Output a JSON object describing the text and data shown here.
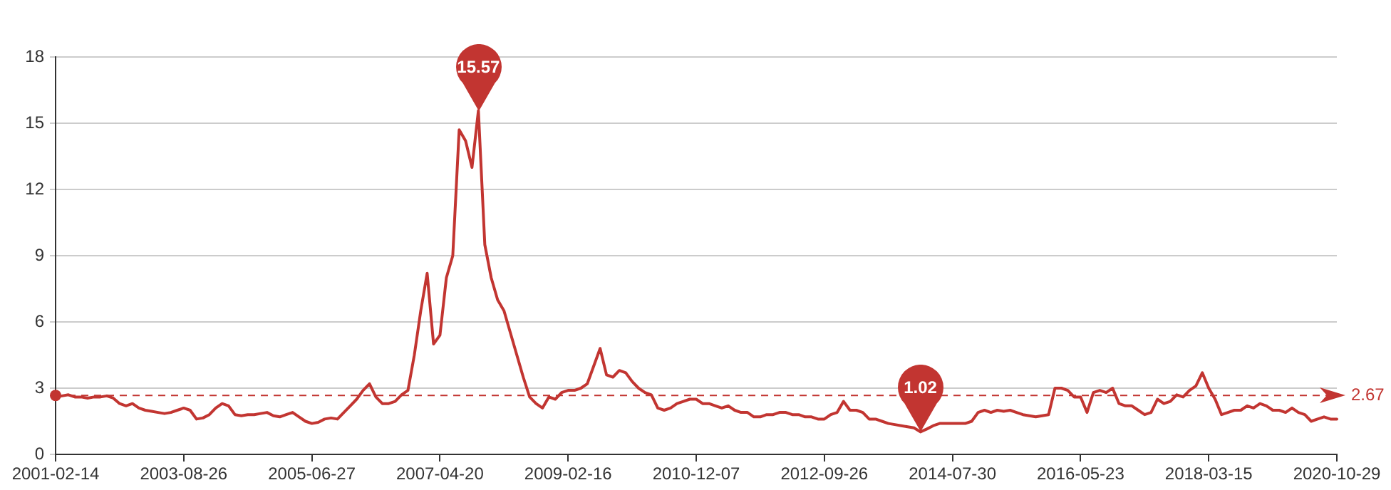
{
  "chart_data": {
    "type": "line",
    "categories": [
      "2001-02-14",
      null,
      null,
      null,
      null,
      null,
      null,
      null,
      null,
      null,
      null,
      null,
      null,
      null,
      null,
      null,
      null,
      null,
      null,
      null,
      "2003-08-26",
      null,
      null,
      null,
      null,
      null,
      null,
      null,
      null,
      null,
      null,
      null,
      null,
      null,
      null,
      null,
      null,
      null,
      null,
      null,
      "2005-06-27",
      null,
      null,
      null,
      null,
      null,
      null,
      null,
      null,
      null,
      null,
      null,
      null,
      null,
      null,
      null,
      null,
      null,
      null,
      null,
      "2007-04-20",
      null,
      null,
      null,
      null,
      null,
      null,
      null,
      null,
      null,
      null,
      null,
      null,
      null,
      null,
      null,
      null,
      null,
      null,
      null,
      "2009-02-16",
      null,
      null,
      null,
      null,
      null,
      null,
      null,
      null,
      null,
      null,
      null,
      null,
      null,
      null,
      null,
      null,
      null,
      null,
      null,
      "2010-12-07",
      null,
      null,
      null,
      null,
      null,
      null,
      null,
      null,
      null,
      null,
      null,
      null,
      null,
      null,
      null,
      null,
      null,
      null,
      null,
      "2012-09-26",
      null,
      null,
      null,
      null,
      null,
      null,
      null,
      null,
      null,
      null,
      null,
      null,
      null,
      null,
      null,
      null,
      null,
      null,
      null,
      "2014-07-30",
      null,
      null,
      null,
      null,
      null,
      null,
      null,
      null,
      null,
      null,
      null,
      null,
      null,
      null,
      null,
      null,
      null,
      null,
      null,
      "2016-05-23",
      null,
      null,
      null,
      null,
      null,
      null,
      null,
      null,
      null,
      null,
      null,
      null,
      null,
      null,
      null,
      null,
      null,
      null,
      null,
      "2018-03-15",
      null,
      null,
      null,
      null,
      null,
      null,
      null,
      null,
      null,
      null,
      null,
      null,
      null,
      null,
      null,
      null,
      null,
      null,
      null,
      "2020-10-29"
    ],
    "series": [
      {
        "color": "#c23531",
        "values": [
          2.6,
          2.65,
          2.7,
          2.6,
          2.6,
          2.55,
          2.6,
          2.6,
          2.65,
          2.55,
          2.3,
          2.2,
          2.3,
          2.1,
          2.0,
          1.95,
          1.9,
          1.85,
          1.9,
          2.0,
          2.1,
          2.0,
          1.6,
          1.65,
          1.8,
          2.1,
          2.3,
          2.2,
          1.8,
          1.75,
          1.8,
          1.8,
          1.85,
          1.9,
          1.75,
          1.7,
          1.8,
          1.9,
          1.7,
          1.5,
          1.4,
          1.45,
          1.6,
          1.65,
          1.6,
          1.9,
          2.2,
          2.5,
          2.9,
          3.2,
          2.6,
          2.3,
          2.3,
          2.4,
          2.7,
          2.9,
          4.5,
          6.5,
          8.2,
          5.0,
          5.4,
          8.0,
          9.0,
          14.7,
          14.2,
          13.0,
          15.57,
          9.5,
          8.0,
          7.0,
          6.5,
          5.5,
          4.5,
          3.5,
          2.6,
          2.3,
          2.1,
          2.6,
          2.5,
          2.8,
          2.9,
          2.9,
          3.0,
          3.2,
          4.0,
          4.8,
          3.6,
          3.5,
          3.8,
          3.7,
          3.3,
          3.0,
          2.8,
          2.7,
          2.1,
          2.0,
          2.1,
          2.3,
          2.4,
          2.5,
          2.5,
          2.3,
          2.3,
          2.2,
          2.1,
          2.2,
          2.0,
          1.9,
          1.9,
          1.7,
          1.7,
          1.8,
          1.8,
          1.9,
          1.9,
          1.8,
          1.8,
          1.7,
          1.7,
          1.6,
          1.6,
          1.8,
          1.9,
          2.4,
          2.0,
          2.0,
          1.9,
          1.6,
          1.6,
          1.5,
          1.4,
          1.35,
          1.3,
          1.25,
          1.2,
          1.02,
          1.15,
          1.3,
          1.4,
          1.4,
          1.4,
          1.4,
          1.4,
          1.5,
          1.9,
          2.0,
          1.9,
          2.0,
          1.95,
          2.0,
          1.9,
          1.8,
          1.75,
          1.7,
          1.75,
          1.8,
          3.0,
          3.0,
          2.9,
          2.6,
          2.6,
          1.9,
          2.8,
          2.9,
          2.8,
          3.0,
          2.3,
          2.2,
          2.2,
          2.0,
          1.8,
          1.9,
          2.5,
          2.3,
          2.4,
          2.7,
          2.6,
          2.9,
          3.1,
          3.7,
          3.0,
          2.5,
          1.8,
          1.9,
          2.0,
          2.0,
          2.2,
          2.1,
          2.3,
          2.2,
          2.0,
          2.0,
          1.9,
          2.1,
          1.9,
          1.8,
          1.5,
          1.6,
          1.7,
          1.6,
          1.6
        ]
      }
    ],
    "ylim": [
      0,
      18
    ],
    "yticks": [
      0,
      3,
      6,
      9,
      12,
      15,
      18
    ],
    "grid": "y",
    "legend": false,
    "marker": "none",
    "line_style": "solid",
    "ref_lines": [
      {
        "axis": "y",
        "value": 2.67,
        "label": "2.67",
        "color": "#c23531",
        "line_style": "dashed"
      }
    ],
    "annotations": [
      {
        "text": "15.57",
        "y": 15.57
      },
      {
        "text": "1.02",
        "y": 1.02
      }
    ]
  }
}
